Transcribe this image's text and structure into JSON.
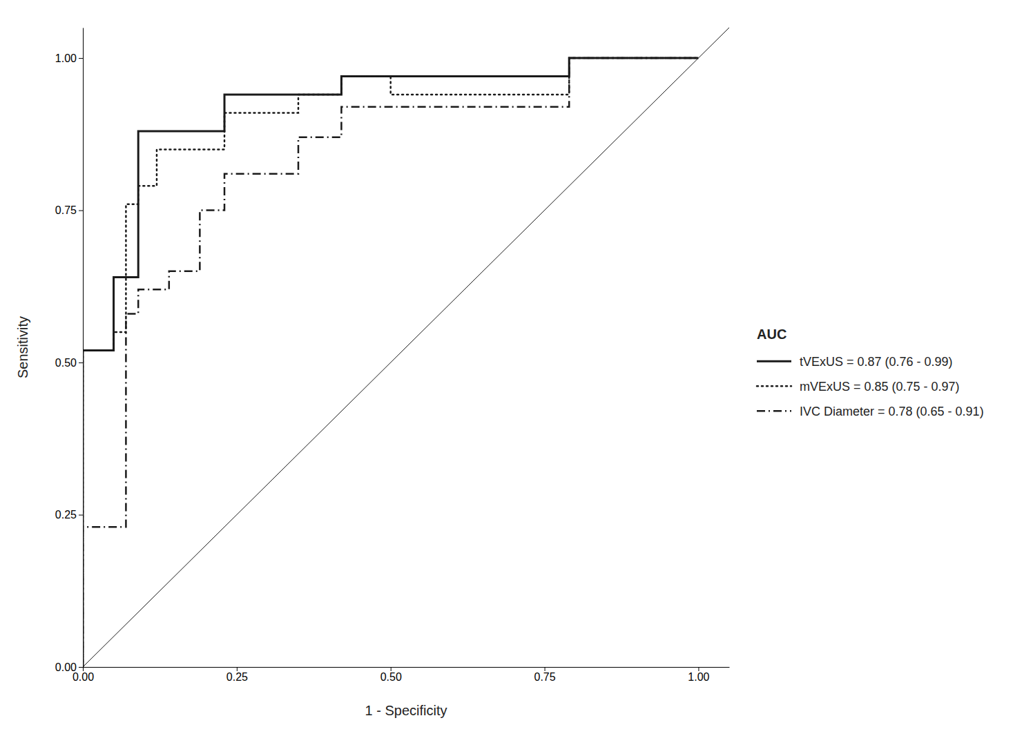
{
  "chart_data": {
    "type": "line",
    "xlabel": "1 - Specificity",
    "ylabel": "Sensitivity",
    "xlim": [
      0.0,
      1.05
    ],
    "ylim": [
      0.0,
      1.05
    ],
    "xticks": [
      {
        "value": 0.0,
        "label": "0.00"
      },
      {
        "value": 0.25,
        "label": "0.25"
      },
      {
        "value": 0.5,
        "label": "0.50"
      },
      {
        "value": 0.75,
        "label": "0.75"
      },
      {
        "value": 1.0,
        "label": "1.00"
      }
    ],
    "yticks": [
      {
        "value": 0.0,
        "label": "0.00"
      },
      {
        "value": 0.25,
        "label": "0.25"
      },
      {
        "value": 0.5,
        "label": "0.50"
      },
      {
        "value": 0.75,
        "label": "0.75"
      },
      {
        "value": 1.0,
        "label": "1.00"
      }
    ],
    "grid": false,
    "legend": "right",
    "legend_title": "AUC",
    "diagonal": {
      "x": [
        0,
        1.05
      ],
      "y": [
        0,
        1.05
      ],
      "color": "#1a1a1a"
    },
    "series": [
      {
        "name": "tVExUS = 0.87 (0.76 - 0.99)",
        "color": "#1a1a1a",
        "line_style": "solid",
        "x": [
          0.0,
          0.0,
          0.05,
          0.05,
          0.09,
          0.09,
          0.23,
          0.23,
          0.42,
          0.42,
          0.79,
          0.79,
          1.0
        ],
        "values": [
          0.0,
          0.52,
          0.52,
          0.64,
          0.64,
          0.88,
          0.88,
          0.94,
          0.94,
          0.97,
          0.97,
          1.0,
          1.0
        ]
      },
      {
        "name": "mVExUS = 0.85 (0.75 - 0.97)",
        "color": "#1a1a1a",
        "line_style": "dotted",
        "x": [
          0.0,
          0.0,
          0.05,
          0.05,
          0.07,
          0.07,
          0.09,
          0.09,
          0.12,
          0.12,
          0.23,
          0.23,
          0.35,
          0.35,
          0.42,
          0.42,
          0.5,
          0.5,
          0.79,
          0.79,
          1.0
        ],
        "values": [
          0.0,
          0.52,
          0.52,
          0.55,
          0.55,
          0.76,
          0.76,
          0.79,
          0.79,
          0.85,
          0.85,
          0.91,
          0.91,
          0.94,
          0.94,
          0.97,
          0.97,
          0.94,
          0.94,
          1.0,
          1.0
        ]
      },
      {
        "name": "IVC Diameter = 0.78 (0.65 - 0.91)",
        "color": "#1a1a1a",
        "line_style": "dashdot",
        "x": [
          0.0,
          0.0,
          0.07,
          0.07,
          0.09,
          0.09,
          0.14,
          0.14,
          0.19,
          0.19,
          0.23,
          0.23,
          0.35,
          0.35,
          0.42,
          0.42,
          0.79,
          0.79,
          1.0
        ],
        "values": [
          0.0,
          0.23,
          0.23,
          0.58,
          0.58,
          0.62,
          0.62,
          0.65,
          0.65,
          0.75,
          0.75,
          0.81,
          0.81,
          0.87,
          0.87,
          0.92,
          0.92,
          1.0,
          1.0
        ]
      }
    ]
  }
}
